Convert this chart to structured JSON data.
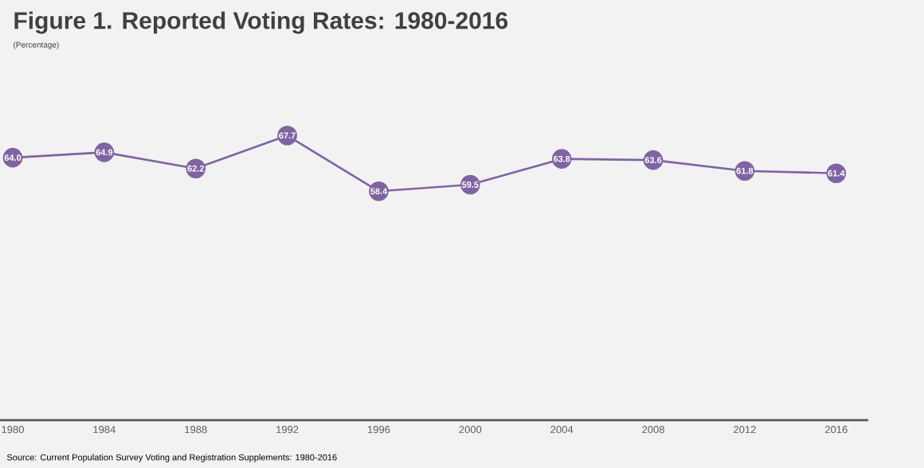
{
  "chart_data": {
    "type": "line",
    "title": "Figure 1. Reported Voting Rates: 1980-2016",
    "subtitle": "(Percentage)",
    "categories": [
      "1980",
      "1984",
      "1988",
      "1992",
      "1996",
      "2000",
      "2004",
      "2008",
      "2012",
      "2016"
    ],
    "series": [
      {
        "color": "#8064a2",
        "values": [
          64.0,
          64.9,
          62.2,
          67.7,
          58.4,
          59.5,
          63.8,
          63.6,
          61.8,
          61.4
        ],
        "value_labels": [
          "64.0",
          "64.9",
          "62.2",
          "67.7",
          "58.4",
          "59.5",
          "63.8",
          "63.6",
          "61.8",
          "61.4"
        ]
      }
    ],
    "marker": "circle",
    "line_style": "solid",
    "annotations": [
      "Source: Current Population Survey Voting and Registration Supplements: 1980-2016"
    ]
  }
}
